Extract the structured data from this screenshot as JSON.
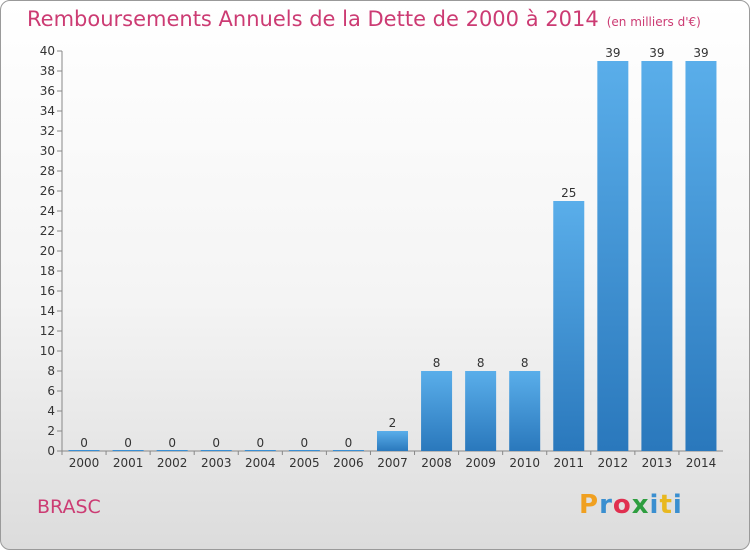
{
  "header": {
    "title": "Remboursements Annuels de la Dette de 2000 à 2014",
    "unit": "(en milliers d'€)"
  },
  "footer": {
    "place": "BRASC",
    "logo_letters": [
      "P",
      "r",
      "o",
      "x",
      "i",
      "t",
      "i"
    ],
    "logo_colors": [
      "#f0a020",
      "#3a8fd0",
      "#e03050",
      "#2e9e40",
      "#3a8fd0",
      "#e8b820",
      "#3a8fd0"
    ]
  },
  "chart_data": {
    "type": "bar",
    "title": "Remboursements Annuels de la Dette de 2000 à 2014",
    "xlabel": "",
    "ylabel": "",
    "categories": [
      "2000",
      "2001",
      "2002",
      "2003",
      "2004",
      "2005",
      "2006",
      "2007",
      "2008",
      "2009",
      "2010",
      "2011",
      "2012",
      "2013",
      "2014"
    ],
    "values": [
      0,
      0,
      0,
      0,
      0,
      0,
      0,
      2,
      8,
      8,
      8,
      25,
      39,
      39,
      39
    ],
    "ylim": [
      0,
      40
    ],
    "ytick_step": 2,
    "grid": false,
    "bar_color": "#3a8fd4"
  }
}
